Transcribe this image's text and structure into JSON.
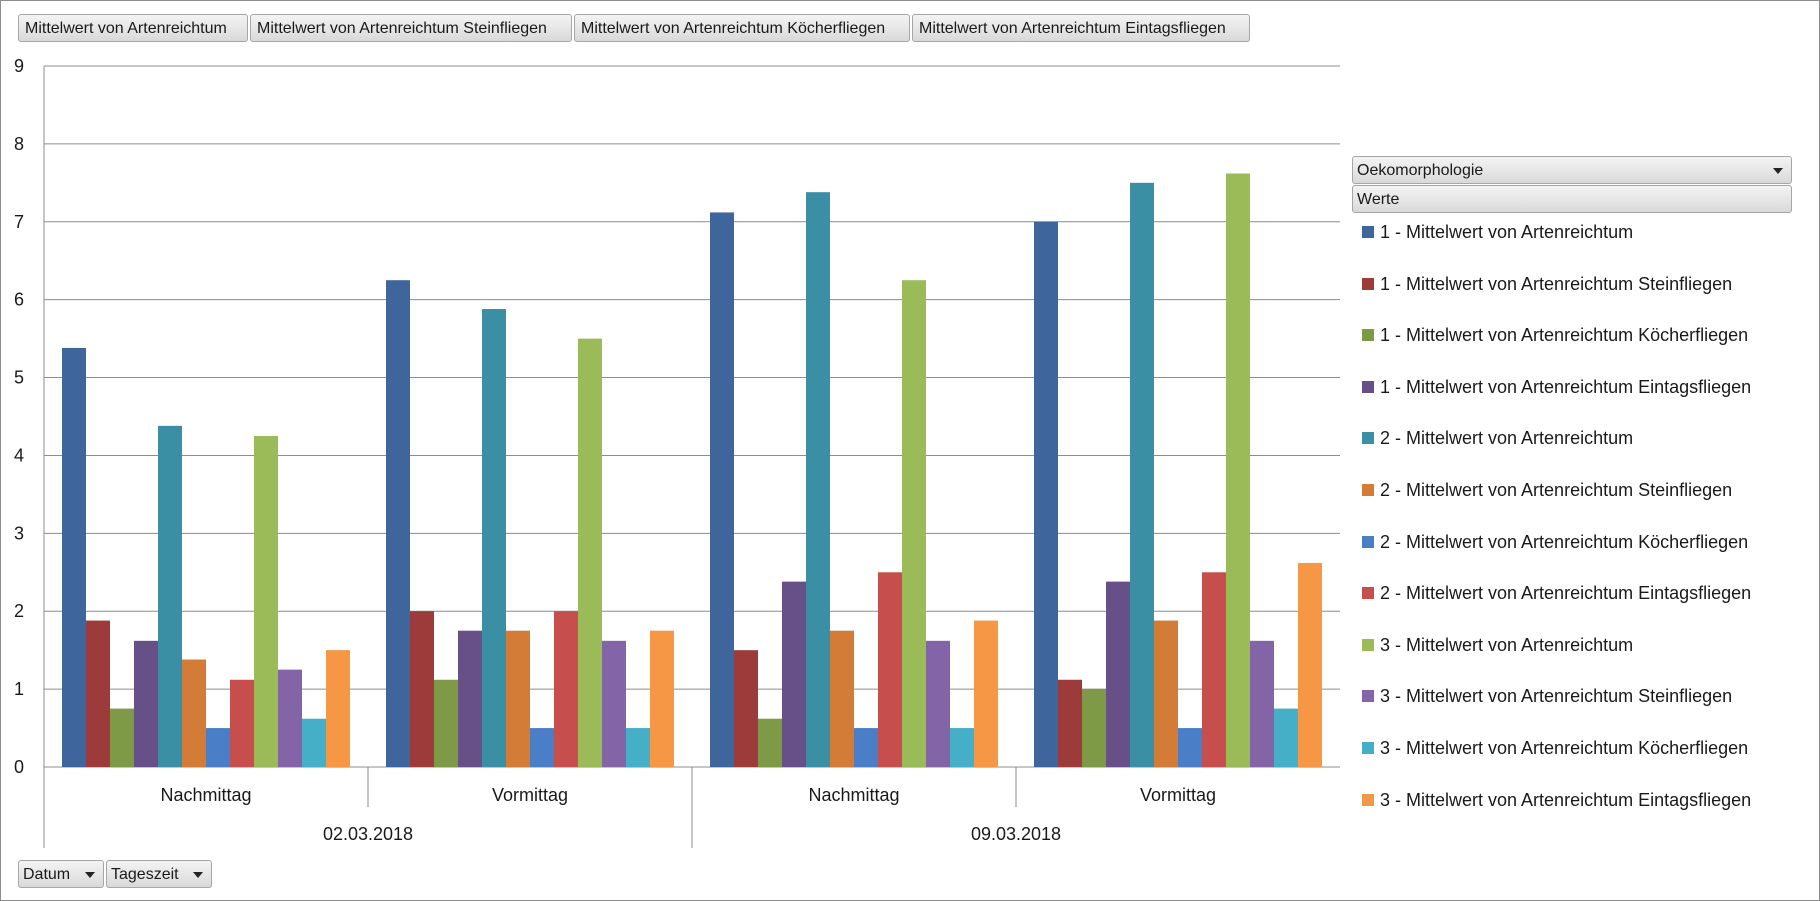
{
  "field_buttons": [
    "Mittelwert von Artenreichtum",
    "Mittelwert von Artenreichtum Steinfliegen",
    "Mittelwert von Artenreichtum Köcherfliegen",
    "Mittelwert von Artenreichtum Eintagsfliegen"
  ],
  "legend_fields": {
    "series_field": "Oekomorphologie",
    "values_field": "Werte"
  },
  "axis_fields": {
    "date_field": "Datum",
    "time_field": "Tageszeit"
  },
  "chart_data": {
    "type": "bar",
    "ylim": [
      0,
      9
    ],
    "yticks": [
      "0",
      "1",
      "2",
      "3",
      "4",
      "5",
      "6",
      "7",
      "8",
      "9"
    ],
    "grid": true,
    "legend_position": "right",
    "groups": [
      {
        "label": "02.03.2018",
        "categories": [
          "Nachmittag",
          "Vormittag"
        ]
      },
      {
        "label": "09.03.2018",
        "categories": [
          "Nachmittag",
          "Vormittag"
        ]
      }
    ],
    "series": [
      {
        "name": "1 - Mittelwert von Artenreichtum",
        "color": "#3e669c",
        "values": [
          5.38,
          6.25,
          7.12,
          7.0
        ]
      },
      {
        "name": "1 - Mittelwert von Artenreichtum Steinfliegen",
        "color": "#9c3b3a",
        "values": [
          1.88,
          2.0,
          1.5,
          1.12
        ]
      },
      {
        "name": "1 - Mittelwert von Artenreichtum Köcherfliegen",
        "color": "#7e9a47",
        "values": [
          0.75,
          1.12,
          0.62,
          1.0
        ]
      },
      {
        "name": "1 - Mittelwert von Artenreichtum Eintagsfliegen",
        "color": "#674f88",
        "values": [
          1.62,
          1.75,
          2.38,
          2.38
        ]
      },
      {
        "name": "2 - Mittelwert von Artenreichtum",
        "color": "#3a8fa5",
        "values": [
          4.38,
          5.88,
          7.38,
          7.5
        ]
      },
      {
        "name": "2 - Mittelwert von Artenreichtum Steinfliegen",
        "color": "#d27c38",
        "values": [
          1.38,
          1.75,
          1.75,
          1.88
        ]
      },
      {
        "name": "2 - Mittelwert von Artenreichtum Köcherfliegen",
        "color": "#4a7fc8",
        "values": [
          0.5,
          0.5,
          0.5,
          0.5
        ]
      },
      {
        "name": "2 - Mittelwert von Artenreichtum Eintagsfliegen",
        "color": "#c64f4d",
        "values": [
          1.12,
          2.0,
          2.5,
          2.5
        ]
      },
      {
        "name": "3 - Mittelwert von Artenreichtum",
        "color": "#9bbb59",
        "values": [
          4.25,
          5.5,
          6.25,
          7.62
        ]
      },
      {
        "name": "3 - Mittelwert von Artenreichtum Steinfliegen",
        "color": "#8364a6",
        "values": [
          1.25,
          1.62,
          1.62,
          1.62
        ]
      },
      {
        "name": "3 - Mittelwert von Artenreichtum Köcherfliegen",
        "color": "#45afc8",
        "values": [
          0.62,
          0.5,
          0.5,
          0.75
        ]
      },
      {
        "name": "3 - Mittelwert von Artenreichtum Eintagsfliegen",
        "color": "#f59744",
        "values": [
          1.5,
          1.75,
          1.88,
          2.62
        ]
      }
    ]
  }
}
